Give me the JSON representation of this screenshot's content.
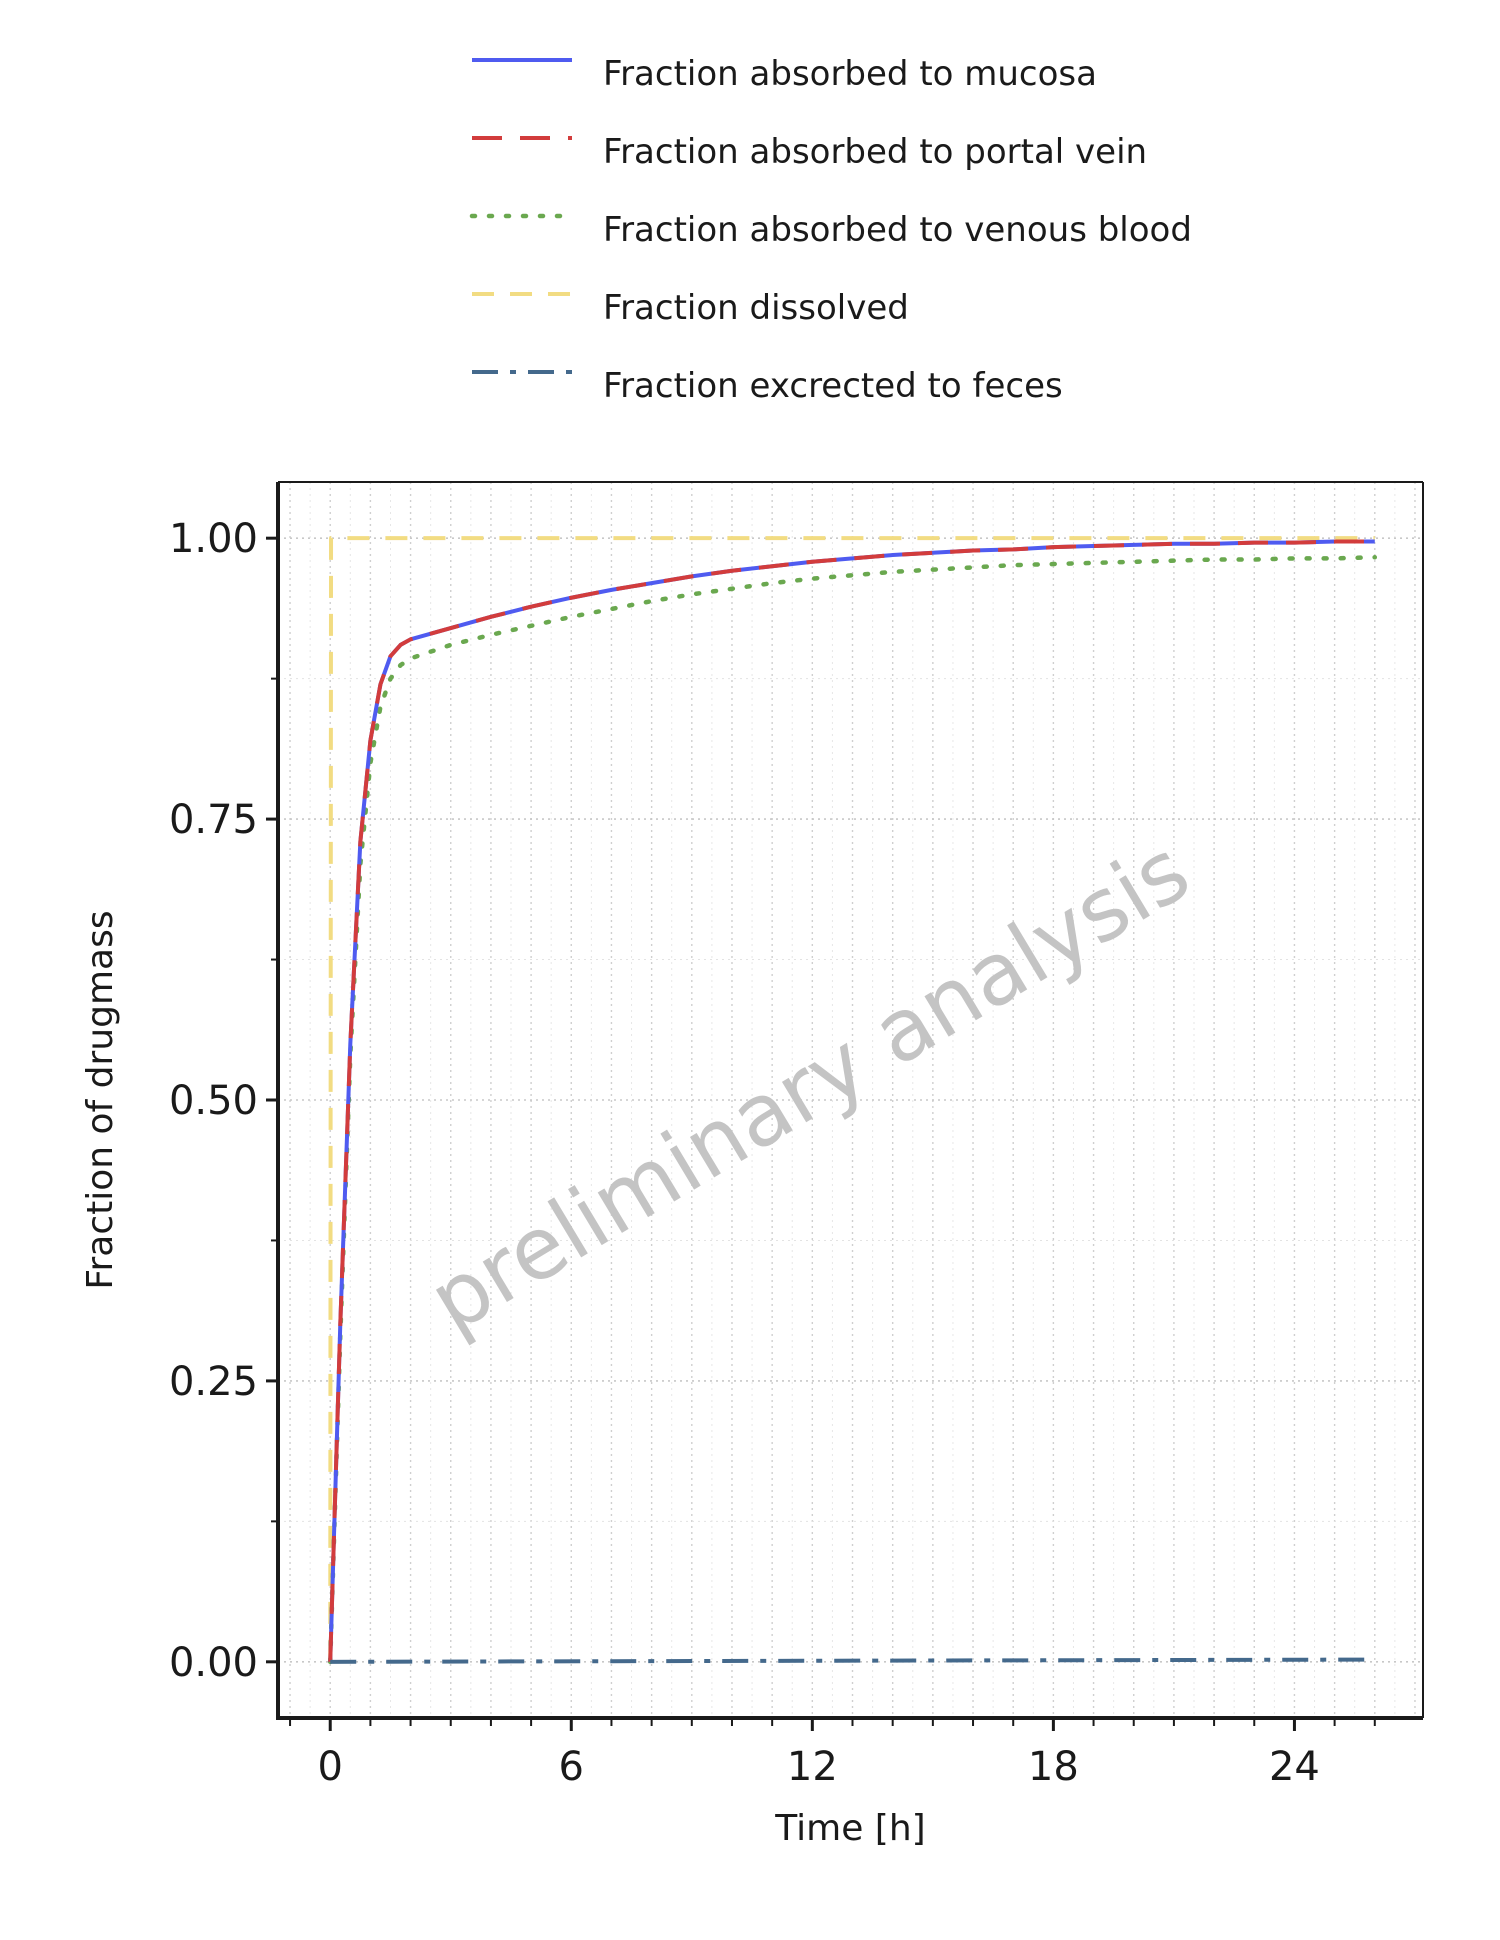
{
  "chart_data": {
    "type": "line",
    "title": "",
    "xlabel": "Time [h]",
    "ylabel": "Fraction of drugmass",
    "xlim": [
      -1.3,
      27.2
    ],
    "ylim": [
      -0.05,
      1.05
    ],
    "xticks": [
      0,
      6,
      12,
      18,
      24
    ],
    "xtick_labels": [
      "0",
      "6",
      "12",
      "18",
      "24"
    ],
    "yticks": [
      0,
      0.25,
      0.5,
      0.75,
      1.0
    ],
    "ytick_labels": [
      "0.00",
      "0.25",
      "0.50",
      "0.75",
      "1.00"
    ],
    "grid": true,
    "legend_position": "top",
    "watermark": "preliminary analysis",
    "series": [
      {
        "name": "Fraction absorbed to mucosa",
        "color": "#4f5bf0",
        "dash": "solid",
        "x": [
          0,
          0.25,
          0.5,
          0.75,
          1.0,
          1.25,
          1.5,
          1.75,
          2,
          2.5,
          3,
          4,
          5,
          6,
          7,
          8,
          9,
          10,
          11,
          12,
          13,
          14,
          15,
          16,
          17,
          18,
          19,
          20,
          21,
          22,
          23,
          24,
          25,
          26
        ],
        "y": [
          0,
          0.3,
          0.55,
          0.73,
          0.82,
          0.87,
          0.895,
          0.905,
          0.91,
          0.915,
          0.92,
          0.93,
          0.939,
          0.947,
          0.954,
          0.96,
          0.966,
          0.971,
          0.975,
          0.979,
          0.982,
          0.985,
          0.987,
          0.989,
          0.99,
          0.992,
          0.993,
          0.994,
          0.995,
          0.995,
          0.996,
          0.996,
          0.997,
          0.997
        ]
      },
      {
        "name": "Fraction absorbed to portal vein",
        "color": "#d23c3c",
        "dash": "longdash",
        "x": [
          0,
          0.25,
          0.5,
          0.75,
          1.0,
          1.25,
          1.5,
          1.75,
          2,
          2.5,
          3,
          4,
          5,
          6,
          7,
          8,
          9,
          10,
          11,
          12,
          13,
          14,
          15,
          16,
          17,
          18,
          19,
          20,
          21,
          22,
          23,
          24,
          25,
          26
        ],
        "y": [
          0,
          0.3,
          0.55,
          0.73,
          0.82,
          0.87,
          0.895,
          0.905,
          0.91,
          0.915,
          0.92,
          0.93,
          0.939,
          0.947,
          0.954,
          0.96,
          0.966,
          0.971,
          0.975,
          0.979,
          0.982,
          0.985,
          0.987,
          0.989,
          0.99,
          0.992,
          0.993,
          0.994,
          0.995,
          0.995,
          0.996,
          0.996,
          0.997,
          0.997
        ]
      },
      {
        "name": "Fraction absorbed to venous blood",
        "color": "#6aa84f",
        "dash": "dotted",
        "x": [
          0,
          0.25,
          0.5,
          0.75,
          1.0,
          1.25,
          1.5,
          1.75,
          2,
          2.5,
          3,
          4,
          5,
          6,
          7,
          8,
          9,
          10,
          11,
          12,
          13,
          14,
          15,
          16,
          17,
          18,
          19,
          20,
          21,
          22,
          23,
          24,
          25,
          26
        ],
        "y": [
          0,
          0.29,
          0.54,
          0.71,
          0.8,
          0.85,
          0.875,
          0.887,
          0.893,
          0.899,
          0.905,
          0.914,
          0.922,
          0.93,
          0.937,
          0.944,
          0.95,
          0.955,
          0.96,
          0.964,
          0.967,
          0.97,
          0.972,
          0.974,
          0.976,
          0.977,
          0.978,
          0.979,
          0.98,
          0.981,
          0.981,
          0.982,
          0.982,
          0.983
        ]
      },
      {
        "name": "Fraction dissolved",
        "color": "#f2dc82",
        "dash": "dashed",
        "x": [
          0,
          0.02,
          26
        ],
        "y": [
          0,
          1.0,
          1.0
        ]
      },
      {
        "name": "Fraction excrected to feces",
        "color": "#44698c",
        "dash": "dotdash",
        "x": [
          0,
          26
        ],
        "y": [
          0,
          0.002
        ]
      }
    ]
  }
}
